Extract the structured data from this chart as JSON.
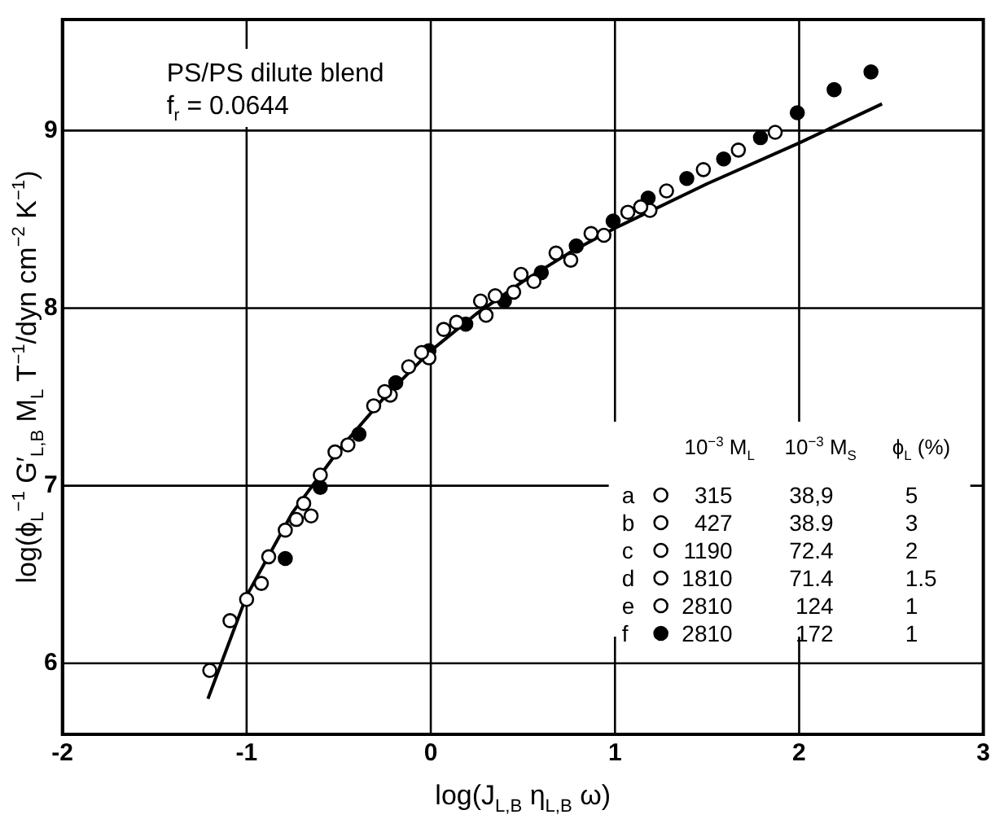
{
  "chart_data": {
    "type": "scatter",
    "xlabel": "log(J$_{L,B}$ η$_{L,B}$ ω)",
    "ylabel": "log(ϕ$_{L}$$^{−1}$ G′$_{L,B}$ M$_{L}$ T$^{−1}$/dyn cm$^{−2}$ K$^{−1}$)",
    "xlim": [
      -2,
      3
    ],
    "ylim": [
      5.6,
      9.625
    ],
    "xticks": [
      -2,
      -1,
      0,
      1,
      2,
      3
    ],
    "yticks": [
      6,
      7,
      8,
      9
    ],
    "grid": true,
    "legend": "bottom right",
    "marker": "circle",
    "annotations": [
      "PS/PS dilute blend",
      "f$_{r}$ = 0.0644",
      "10$^{−3}$ M$_{L}$",
      "10$^{−3}$ M$_{S}$",
      "ϕ$_{L}$ (%)",
      "315",
      "38,9",
      "5",
      "427",
      "38.9",
      "3",
      "1190",
      "72.4",
      "2",
      "1810",
      "71.4",
      "1.5",
      "2810",
      "124",
      "1",
      "2810",
      "172",
      "1"
    ],
    "series": [
      {
        "name": "a",
        "color": "#ffffff",
        "x": [
          -1.09,
          -0.88,
          -0.69,
          -0.31,
          -0.05,
          0.27,
          0.56,
          0.87,
          1.14
        ],
        "values": [
          6.24,
          6.6,
          6.9,
          7.45,
          7.75,
          8.04,
          8.15,
          8.42,
          8.57
        ]
      },
      {
        "name": "b",
        "color": "#ffffff",
        "x": [
          -1.2,
          -0.92,
          -0.73,
          -0.52,
          -0.25,
          0.07,
          0.45,
          0.76,
          1.07
        ],
        "values": [
          5.96,
          6.45,
          6.81,
          7.19,
          7.53,
          7.88,
          8.09,
          8.27,
          8.54
        ]
      },
      {
        "name": "c",
        "color": "#ffffff",
        "x": [
          -1.0,
          -0.79,
          -0.45,
          -0.12,
          0.14,
          0.35,
          0.68,
          0.94
        ],
        "values": [
          6.36,
          6.75,
          7.23,
          7.67,
          7.92,
          8.07,
          8.31,
          8.41
        ]
      },
      {
        "name": "d",
        "color": "#ffffff",
        "x": [
          -0.65,
          -0.22,
          0.3,
          0.49,
          1.19,
          1.28
        ],
        "values": [
          6.83,
          7.51,
          7.96,
          8.19,
          8.55,
          8.66
        ]
      },
      {
        "name": "e",
        "color": "#ffffff",
        "x": [
          -0.6,
          -0.01,
          1.48,
          1.67,
          1.87
        ],
        "values": [
          7.06,
          7.72,
          8.78,
          8.89,
          8.99
        ]
      },
      {
        "name": "f",
        "color": "#000000",
        "x": [
          -0.79,
          -0.6,
          -0.39,
          -0.19,
          -0.01,
          0.19,
          0.4,
          0.6,
          0.79,
          0.99,
          1.18,
          1.39,
          1.59,
          1.79,
          1.99,
          2.19,
          2.39
        ],
        "values": [
          6.59,
          6.99,
          7.29,
          7.58,
          7.76,
          7.91,
          8.04,
          8.2,
          8.35,
          8.49,
          8.62,
          8.73,
          8.84,
          8.96,
          9.1,
          9.23,
          9.33
        ]
      },
      {
        "type": "line",
        "marker": "none",
        "color": "#000000",
        "x": [
          -1.21,
          -1,
          -0.75,
          -0.5,
          -0.25,
          0,
          0.25,
          0.5,
          0.75,
          1,
          1.5,
          2,
          2.45
        ],
        "values": [
          5.8,
          6.38,
          6.85,
          7.2,
          7.5,
          7.76,
          7.97,
          8.15,
          8.31,
          8.45,
          8.7,
          8.93,
          9.15
        ]
      }
    ]
  }
}
